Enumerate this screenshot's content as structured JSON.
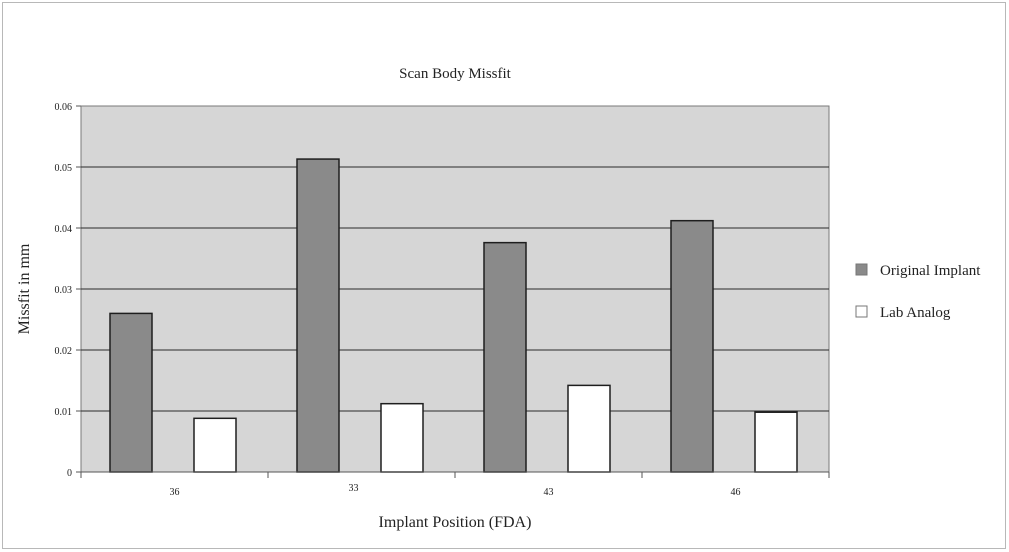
{
  "chart_data": {
    "type": "bar",
    "title": "Scan Body Missfit",
    "xlabel": "Implant Position (FDA)",
    "ylabel": "Missfit in mm",
    "categories": [
      "36",
      "33",
      "43",
      "46"
    ],
    "series": [
      {
        "name": "Original Implant",
        "values": [
          0.026,
          0.0513,
          0.0376,
          0.0412
        ],
        "color": "#8a8a8a"
      },
      {
        "name": "Lab Analog",
        "values": [
          0.0088,
          0.0112,
          0.0142,
          0.0098
        ],
        "color": "#ffffff"
      }
    ],
    "ylim": [
      0,
      0.06
    ],
    "yticks": [
      "0",
      "0.01",
      "0.02",
      "0.03",
      "0.04",
      "0.05",
      "0.06"
    ],
    "grid": true,
    "plot_background": "#d6d6d6",
    "legend_position": "right"
  }
}
